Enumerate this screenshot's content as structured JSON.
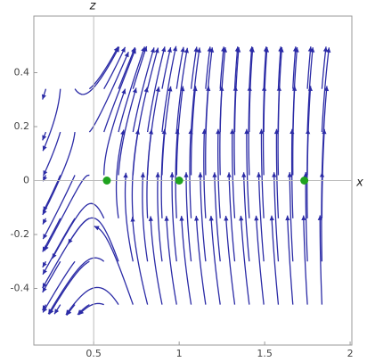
{
  "chart_data": {
    "type": "streamplot",
    "xlabel": "x",
    "ylabel": "z",
    "xlim": [
      0.15,
      2.01
    ],
    "ylim": [
      -0.61,
      0.61
    ],
    "xticks": [
      0.5,
      1.0,
      1.5,
      2.0
    ],
    "yticks": [
      -0.4,
      -0.2,
      0.0,
      0.2,
      0.4
    ],
    "stream_color": "#2b2ba6",
    "series": [
      {
        "name": "fixed points",
        "color": "#1fa31f",
        "x": [
          0.577,
          1.0,
          1.732
        ],
        "values": [
          0,
          0,
          0
        ]
      }
    ]
  }
}
